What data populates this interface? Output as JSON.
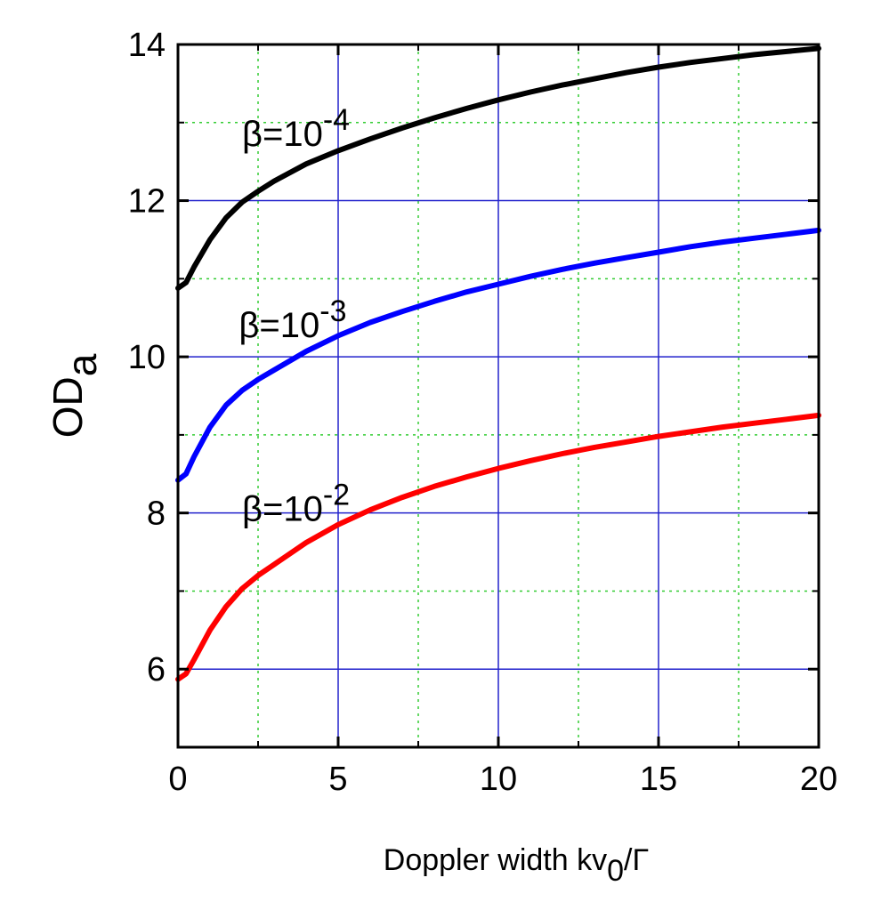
{
  "chart_data": {
    "type": "line",
    "xlabel": {
      "main": "Doppler width kv",
      "sub": "0",
      "tail": "/Γ"
    },
    "ylabel": {
      "main": "OD",
      "sub": "a"
    },
    "xlim": [
      0,
      20
    ],
    "ylim": [
      5,
      14
    ],
    "x_major_ticks": [
      0,
      5,
      10,
      15,
      20
    ],
    "x_tick_labels": [
      "0",
      "5",
      "10",
      "15",
      "20"
    ],
    "y_major_ticks": [
      6,
      8,
      10,
      12,
      14
    ],
    "y_tick_labels": [
      "6",
      "8",
      "10",
      "12",
      "14"
    ],
    "x_minor_grid": [
      2.5,
      7.5,
      12.5,
      17.5
    ],
    "y_minor_grid": [
      7,
      9,
      11,
      13
    ],
    "grid": true,
    "colors": {
      "major_grid": "#2222cc",
      "minor_grid": "#33cc33"
    },
    "series": [
      {
        "color": "#000000",
        "x": [
          0,
          0.25,
          0.5,
          1,
          1.5,
          2,
          2.5,
          3,
          4,
          5,
          6,
          7,
          8,
          9,
          10,
          11,
          12,
          13,
          14,
          15,
          16,
          17,
          18,
          19,
          20
        ],
        "y": [
          10.88,
          10.95,
          11.15,
          11.5,
          11.78,
          11.98,
          12.12,
          12.25,
          12.47,
          12.64,
          12.79,
          12.93,
          13.06,
          13.18,
          13.29,
          13.39,
          13.48,
          13.56,
          13.64,
          13.71,
          13.77,
          13.82,
          13.87,
          13.91,
          13.95
        ]
      },
      {
        "color": "#0000ff",
        "x": [
          0,
          0.25,
          0.5,
          1,
          1.5,
          2,
          2.5,
          3,
          4,
          5,
          6,
          7,
          8,
          9,
          10,
          11,
          12,
          13,
          14,
          15,
          16,
          17,
          18,
          19,
          20
        ],
        "y": [
          8.42,
          8.5,
          8.72,
          9.1,
          9.38,
          9.57,
          9.71,
          9.83,
          10.07,
          10.27,
          10.44,
          10.58,
          10.71,
          10.83,
          10.93,
          11.03,
          11.12,
          11.2,
          11.27,
          11.34,
          11.41,
          11.47,
          11.52,
          11.57,
          11.62
        ]
      },
      {
        "color": "#ff0000",
        "x": [
          0,
          0.25,
          0.5,
          1,
          1.5,
          2,
          2.5,
          3,
          4,
          5,
          6,
          7,
          8,
          9,
          10,
          11,
          12,
          13,
          14,
          15,
          16,
          17,
          18,
          19,
          20
        ],
        "y": [
          5.87,
          5.94,
          6.12,
          6.5,
          6.8,
          7.03,
          7.2,
          7.34,
          7.62,
          7.85,
          8.04,
          8.2,
          8.34,
          8.46,
          8.57,
          8.67,
          8.76,
          8.84,
          8.91,
          8.98,
          9.04,
          9.1,
          9.15,
          9.2,
          9.25
        ]
      }
    ],
    "annotations": [
      {
        "base": "β=10",
        "exp": "-4",
        "x": 2.0,
        "y": 12.7
      },
      {
        "base": "β=10",
        "exp": "-3",
        "x": 1.9,
        "y": 10.25
      },
      {
        "base": "β=10",
        "exp": "-2",
        "x": 2.0,
        "y": 7.9
      }
    ]
  }
}
